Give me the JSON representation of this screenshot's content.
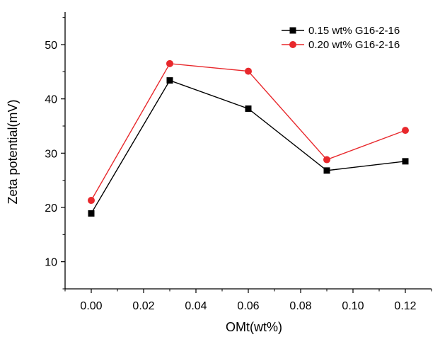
{
  "chart_data": {
    "type": "line",
    "xlabel": "OMt(wt%)",
    "ylabel": "Zeta potential(mV)",
    "xlim": [
      -0.01,
      0.13
    ],
    "ylim": [
      5,
      56
    ],
    "xticks": [
      "0.00",
      "0.02",
      "0.04",
      "0.06",
      "0.08",
      "0.10",
      "0.12"
    ],
    "xtick_values": [
      0.0,
      0.02,
      0.04,
      0.06,
      0.08,
      0.1,
      0.12
    ],
    "yticks": [
      "10",
      "20",
      "30",
      "40",
      "50"
    ],
    "ytick_values": [
      10,
      20,
      30,
      40,
      50
    ],
    "grid": false,
    "legend_position": "top-right",
    "series": [
      {
        "name": "0.15 wt% G16-2-16",
        "marker": "square",
        "color": "#000000",
        "x": [
          0.0,
          0.03,
          0.06,
          0.09,
          0.12
        ],
        "y": [
          18.9,
          43.4,
          38.2,
          26.8,
          28.5
        ]
      },
      {
        "name": "0.20 wt% G16-2-16",
        "marker": "circle",
        "color": "#e8282c",
        "x": [
          0.0,
          0.03,
          0.06,
          0.09,
          0.12
        ],
        "y": [
          21.3,
          46.5,
          45.1,
          28.8,
          34.2
        ]
      }
    ]
  }
}
